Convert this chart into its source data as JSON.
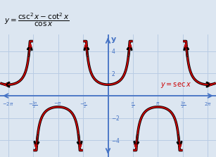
{
  "xlim": [
    -6.8,
    6.8
  ],
  "ylim": [
    -5.5,
    5.5
  ],
  "xticks_vals": [
    -6.283185,
    -4.712389,
    -3.141593,
    -1.570796,
    1.570796,
    3.141593,
    4.712389,
    6.283185
  ],
  "xticks_labels": [
    "-2\\pi",
    "-\\frac{3\\pi}{2}",
    "-\\pi",
    "-\\frac{\\pi}{2}",
    "\\frac{\\pi}{2}",
    "\\pi",
    "\\frac{3\\pi}{2}",
    "2\\pi"
  ],
  "yticks_vals": [
    -4,
    -2,
    2,
    4
  ],
  "yticks_labels": [
    "-4",
    "-2",
    "2",
    "4"
  ],
  "grid_color": "#b8cce4",
  "axis_color": "#4472c4",
  "curve_color_black": "#000000",
  "curve_color_red": "#cc0000",
  "bg_color": "#dce6f1",
  "title_color": "#000000",
  "label_sec_color": "#cc0000",
  "clip_val": 4.9,
  "pi": 3.141592653589793
}
